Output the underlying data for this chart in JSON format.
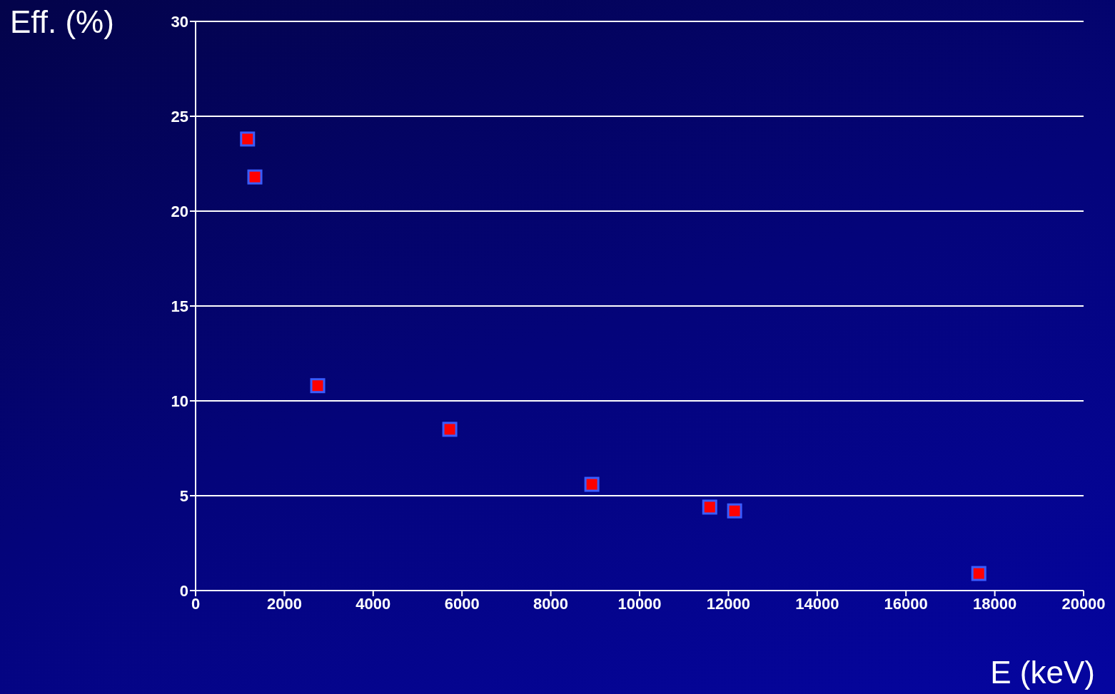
{
  "chart_data": {
    "type": "scatter",
    "xlabel": "E (keV)",
    "ylabel": "Eff. (%)",
    "x": [
      1170,
      1335,
      2750,
      5725,
      8925,
      11580,
      12140,
      17640
    ],
    "values": [
      23.8,
      21.8,
      10.8,
      8.5,
      5.6,
      4.4,
      4.2,
      0.9
    ],
    "color": "#ff0000",
    "marker": "square",
    "xlim": [
      0,
      20000
    ],
    "xticks": [
      0,
      2000,
      4000,
      6000,
      8000,
      10000,
      12000,
      14000,
      16000,
      18000,
      20000
    ],
    "ylim": [
      0,
      30
    ],
    "yticks": [
      0,
      5,
      10,
      15,
      20,
      25,
      30
    ],
    "grid": "y"
  }
}
